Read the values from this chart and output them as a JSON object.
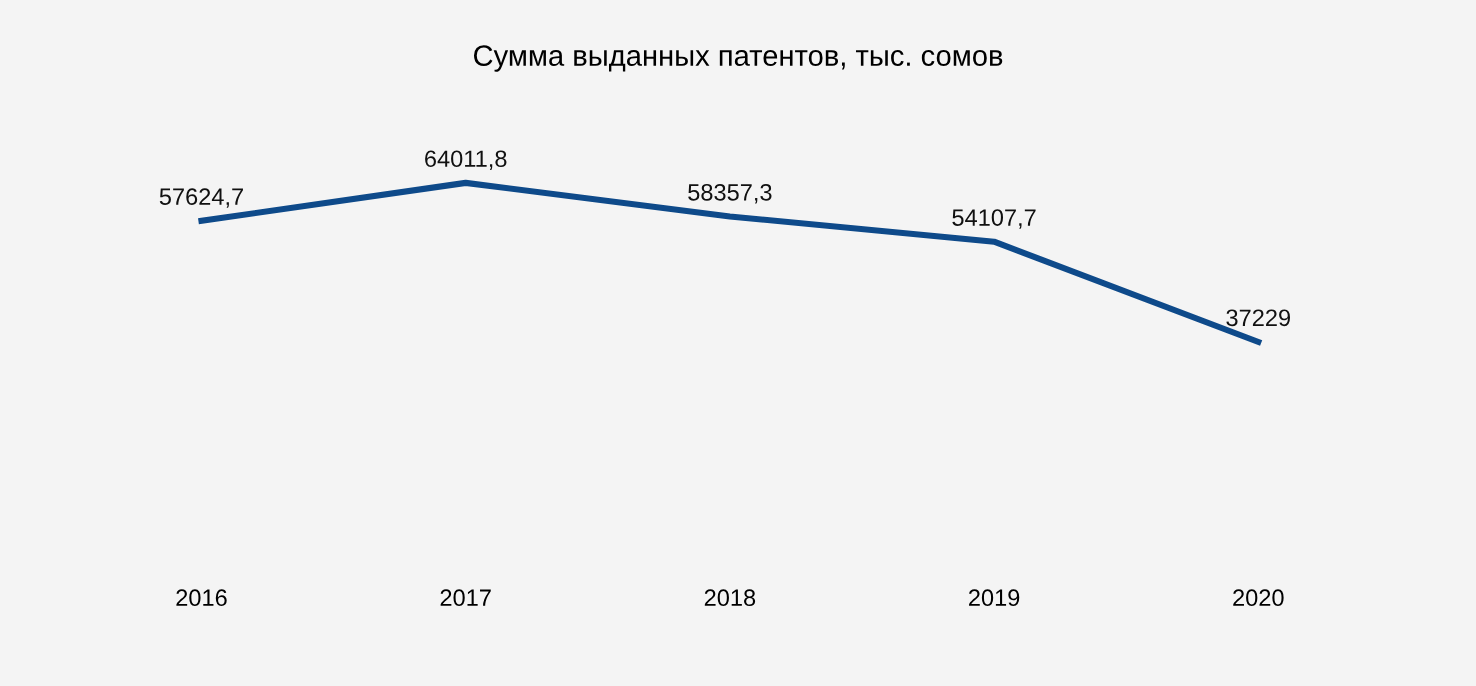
{
  "chart_data": {
    "type": "line",
    "title": "Сумма выданных патентов, тыс. сомов",
    "categories": [
      "2016",
      "2017",
      "2018",
      "2019",
      "2020"
    ],
    "series": [
      {
        "color": "#0e4a8a",
        "values": [
          57624.7,
          64011.8,
          58357.3,
          54107.7,
          37229
        ],
        "value_labels": [
          "57624,7",
          "64011,8",
          "58357,3",
          "54107,7",
          "37229"
        ]
      }
    ],
    "grid": false,
    "tick_labels": "x",
    "marker": "none",
    "line_style": "solid"
  }
}
